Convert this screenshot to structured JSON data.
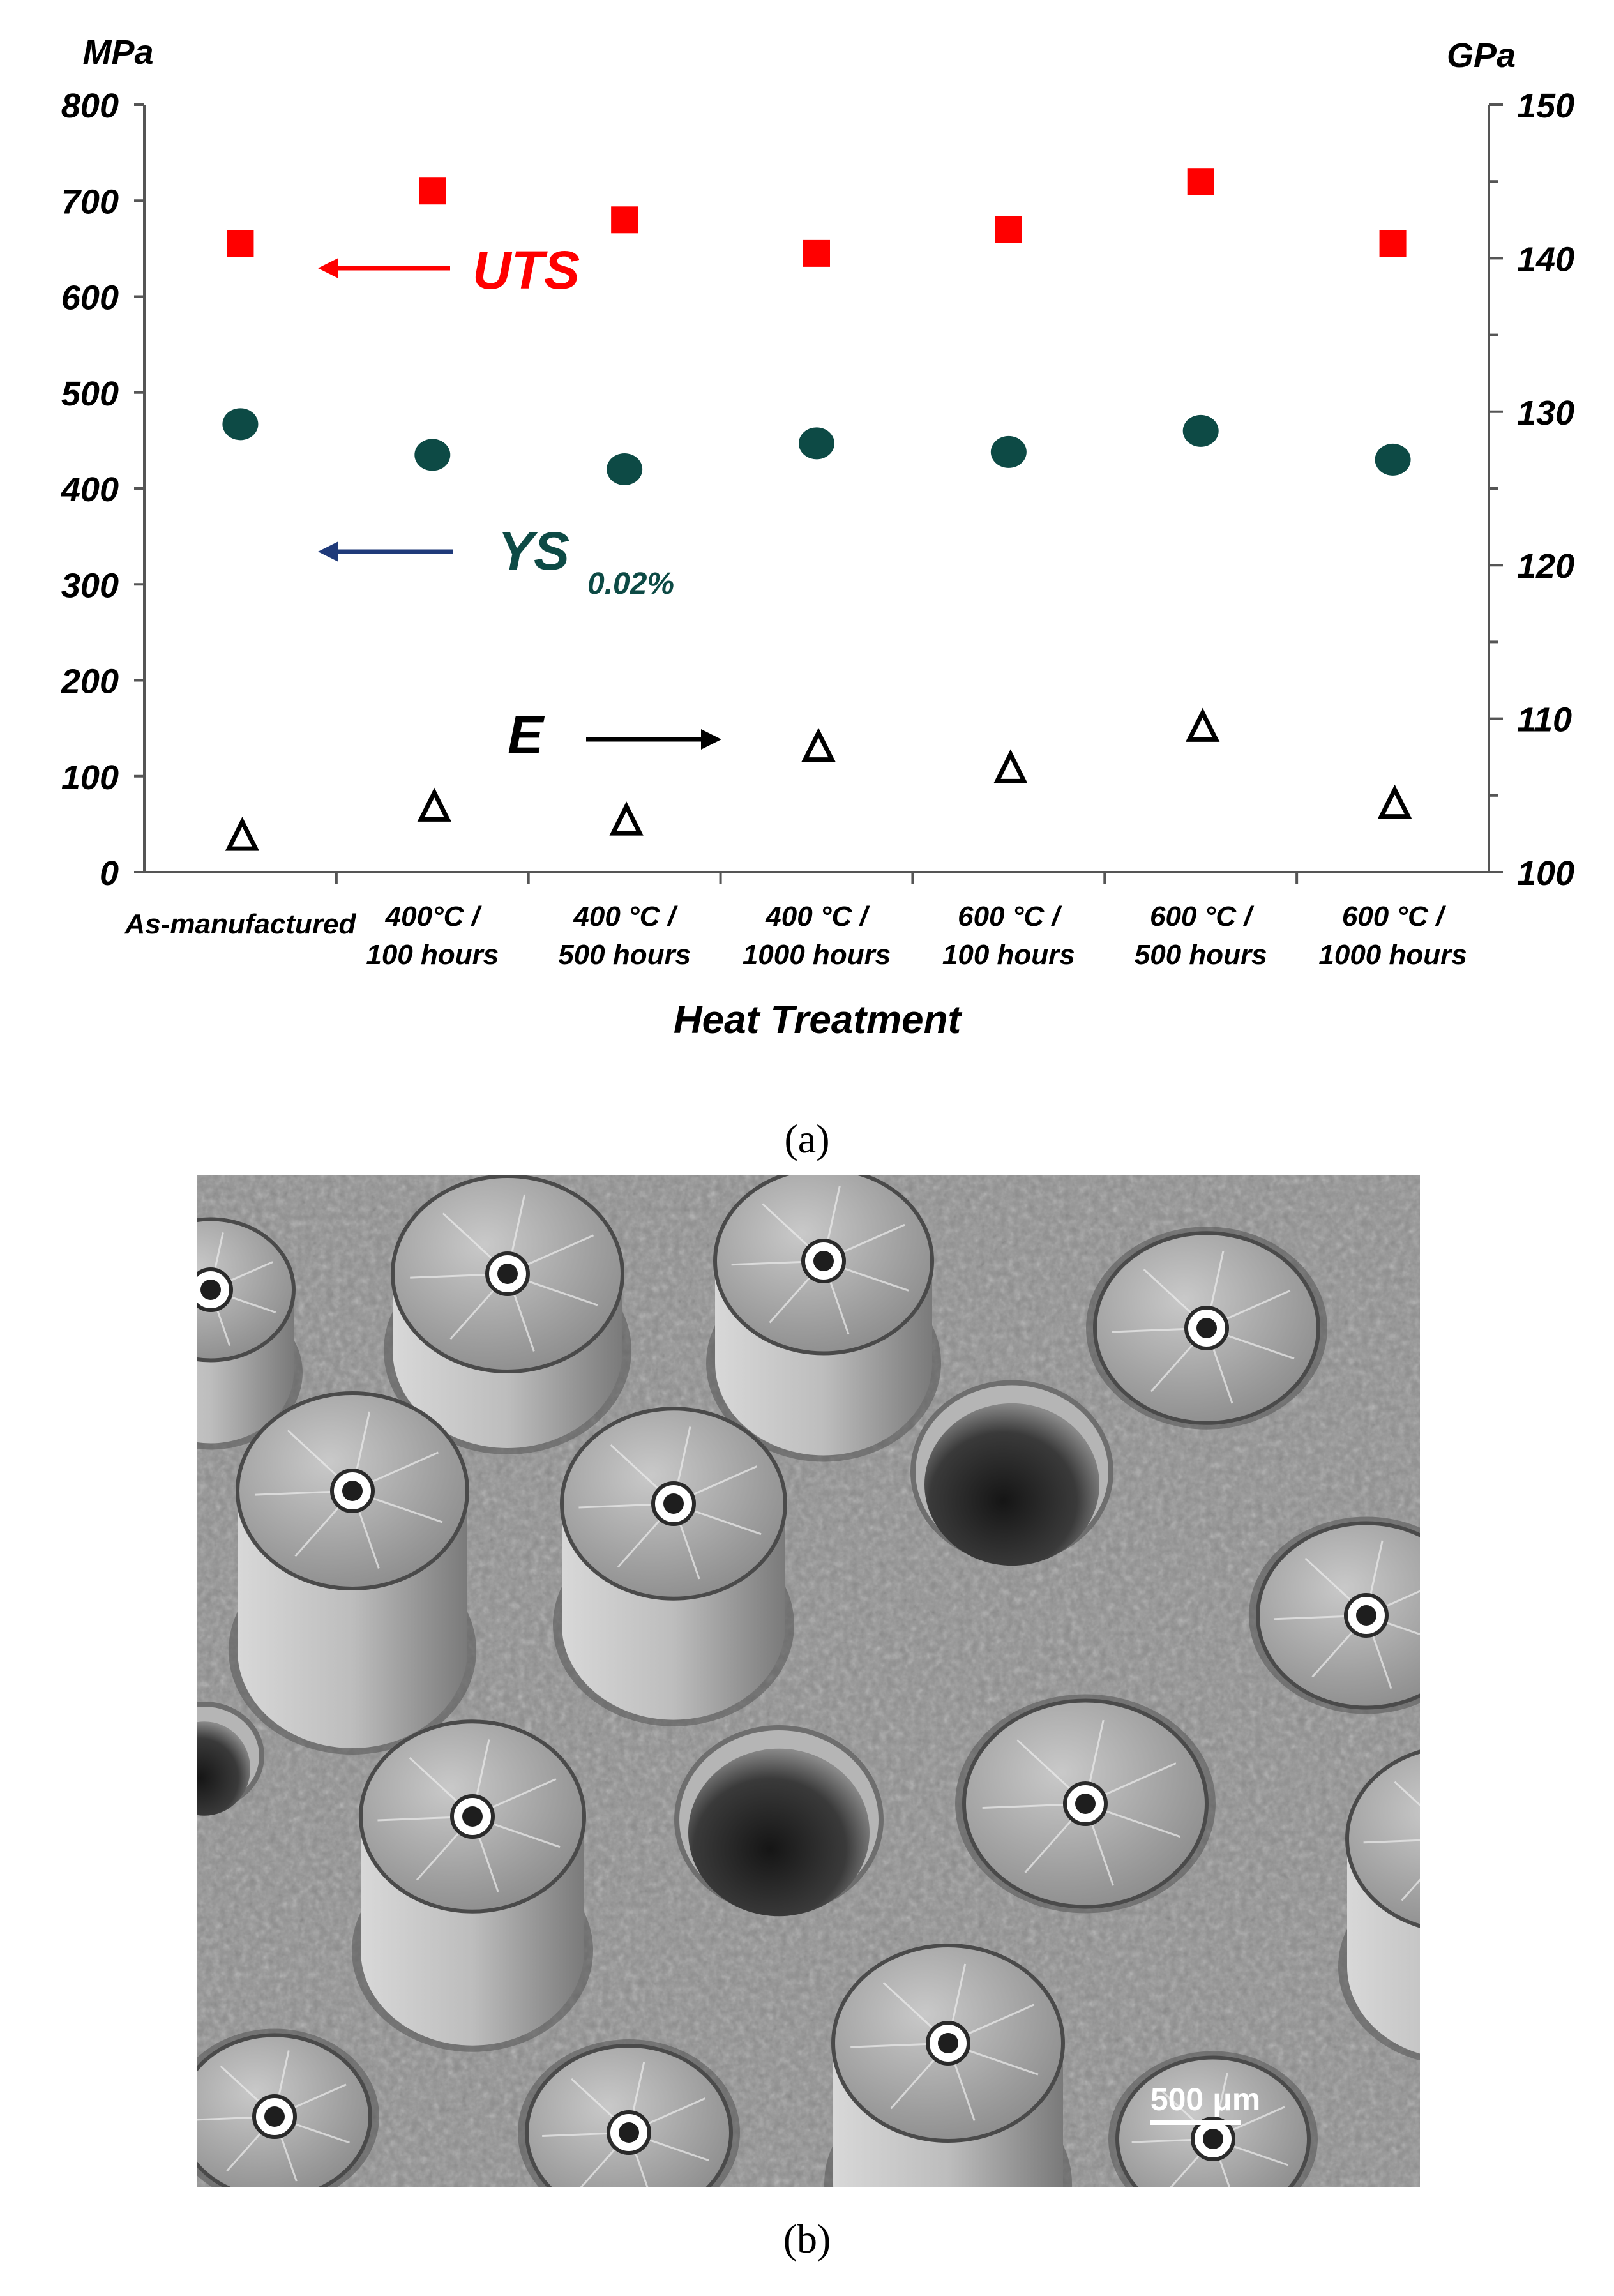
{
  "chart_data": {
    "type": "scatter",
    "title": "",
    "xlabel": "Heat Treatment",
    "ylabel_left": "MPa",
    "ylabel_right": "GPa",
    "ylim_left": [
      0,
      800
    ],
    "ylim_right": [
      100,
      150
    ],
    "yticks_left": [
      "0",
      "100",
      "200",
      "300",
      "400",
      "500",
      "600",
      "700",
      "800"
    ],
    "yticks_right": [
      "100",
      "110",
      "120",
      "130",
      "140",
      "150"
    ],
    "grid": false,
    "categories": [
      [
        "As-manufactured"
      ],
      [
        "400°C /",
        "100 hours"
      ],
      [
        "400 °C /",
        "500 hours"
      ],
      [
        "400 °C /",
        "1000 hours"
      ],
      [
        "600 °C /",
        "100 hours"
      ],
      [
        "600 °C /",
        "500 hours"
      ],
      [
        "600 °C /",
        "1000 hours"
      ]
    ],
    "series": [
      {
        "name": "UTS",
        "axis": "left",
        "marker": "square",
        "color": "#ff0000",
        "values": [
          655,
          710,
          680,
          645,
          670,
          720,
          655
        ]
      },
      {
        "name": "YS",
        "subscript": "0.02%",
        "axis": "left",
        "marker": "circle",
        "color": "#0d4a45",
        "values": [
          467,
          435,
          420,
          447,
          438,
          460,
          430
        ]
      },
      {
        "name": "E",
        "axis": "right",
        "marker": "triangle-open",
        "color": "#000000",
        "values": [
          102.2,
          104.1,
          103.2,
          108.0,
          106.6,
          109.3,
          104.3
        ]
      }
    ]
  },
  "captions": {
    "a": "(a)",
    "b": "(b)"
  },
  "micrograph": {
    "scale_bar_label": "500 μm"
  }
}
